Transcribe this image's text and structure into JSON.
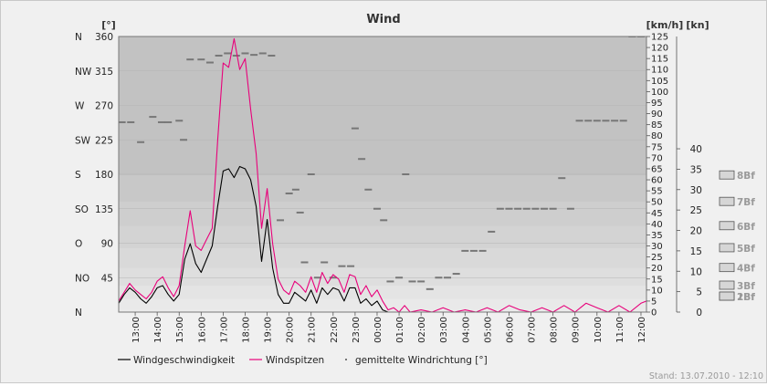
{
  "chart_data": {
    "type": "line",
    "title": "Wind",
    "left_axis": {
      "unit_label": "[°]",
      "ylim": [
        0,
        360
      ],
      "ticks": [
        {
          "value": 360,
          "label": "N"
        },
        {
          "value": 315,
          "label": "NW"
        },
        {
          "value": 270,
          "label": "W"
        },
        {
          "value": 225,
          "label": "SW"
        },
        {
          "value": 180,
          "label": "S"
        },
        {
          "value": 135,
          "label": "SO"
        },
        {
          "value": 90,
          "label": "O"
        },
        {
          "value": 45,
          "label": "NO"
        },
        {
          "value": 0,
          "label": "N"
        }
      ],
      "values": [
        "360",
        "315",
        "270",
        "225",
        "180",
        "135",
        "90",
        "45"
      ]
    },
    "kmh_axis": {
      "unit_label": "[km/h]",
      "ylim": [
        0,
        125
      ],
      "ticks": [
        "0",
        "5",
        "10",
        "15",
        "20",
        "25",
        "30",
        "35",
        "40",
        "45",
        "50",
        "55",
        "60",
        "65",
        "70",
        "75",
        "80",
        "85",
        "90",
        "95",
        "100",
        "105",
        "110",
        "115",
        "120",
        "125"
      ]
    },
    "kn_axis": {
      "unit_label": "[kn]",
      "ylim": [
        0,
        67.5
      ],
      "ticks": [
        "0",
        "5",
        "10",
        "15",
        "20",
        "25",
        "30",
        "35",
        "40"
      ]
    },
    "beaufort_scale": [
      {
        "label": "1Bf",
        "kmh": 1
      },
      {
        "label": "2Bf",
        "kmh": 6
      },
      {
        "label": "3Bf",
        "kmh": 12
      },
      {
        "label": "4Bf",
        "kmh": 20
      },
      {
        "label": "5Bf",
        "kmh": 29
      },
      {
        "label": "6Bf",
        "kmh": 39
      },
      {
        "label": "7Bf",
        "kmh": 50
      },
      {
        "label": "8Bf",
        "kmh": 62
      }
    ],
    "x_range_hours": [
      12.25,
      36.25
    ],
    "x_tick_labels": [
      "13:00",
      "14:00",
      "15:00",
      "16:00",
      "17:00",
      "18:00",
      "19:00",
      "20:00",
      "21:00",
      "22:00",
      "23:00",
      "00:00",
      "01:00",
      "02:00",
      "03:00",
      "04:00",
      "05:00",
      "06:00",
      "07:00",
      "08:00",
      "09:00",
      "10:00",
      "11:00",
      "12:00"
    ],
    "series": [
      {
        "name": "Windgeschwindigkeit",
        "color": "#000000",
        "x_hours": [
          12.25,
          12.5,
          12.75,
          13.0,
          13.25,
          13.5,
          13.75,
          14.0,
          14.25,
          14.5,
          14.75,
          15.0,
          15.25,
          15.5,
          15.75,
          16.0,
          16.25,
          16.5,
          16.75,
          17.0,
          17.25,
          17.5,
          17.75,
          18.0,
          18.25,
          18.5,
          18.75,
          19.0,
          19.25,
          19.5,
          19.75,
          20.0,
          20.25,
          20.5,
          20.75,
          21.0,
          21.25,
          21.5,
          21.75,
          22.0,
          22.25,
          22.5,
          22.75,
          23.0,
          23.25,
          23.5,
          23.75,
          24.0,
          24.25,
          24.5,
          24.75,
          25.0,
          25.25,
          25.5,
          26.0,
          26.5,
          27.0,
          27.5,
          28.0,
          28.5,
          29.0,
          29.5,
          30.0,
          30.5,
          31.0,
          31.5,
          32.0,
          32.5,
          33.0,
          33.5,
          34.0,
          34.5,
          35.0,
          35.5,
          36.0,
          36.25
        ],
        "values": [
          4,
          8,
          11,
          9,
          6,
          4,
          7,
          11,
          12,
          8,
          5,
          8,
          24,
          31,
          22,
          18,
          24,
          30,
          48,
          64,
          65,
          61,
          66,
          65,
          60,
          48,
          23,
          42,
          20,
          8,
          4,
          4,
          9,
          7,
          5,
          10,
          4,
          11,
          8,
          11,
          10,
          5,
          11,
          11,
          4,
          6,
          3,
          5,
          1,
          0,
          0,
          0,
          0,
          0,
          0,
          0,
          0,
          0,
          0,
          0,
          0,
          0,
          0,
          0,
          0,
          0,
          0,
          0,
          0,
          0,
          0,
          0,
          0,
          0,
          0,
          0
        ]
      },
      {
        "name": "Windspitzen",
        "color": "#e8007a",
        "x_hours": [
          12.25,
          12.5,
          12.75,
          13.0,
          13.25,
          13.5,
          13.75,
          14.0,
          14.25,
          14.5,
          14.75,
          15.0,
          15.25,
          15.5,
          15.75,
          16.0,
          16.25,
          16.5,
          16.75,
          17.0,
          17.25,
          17.5,
          17.75,
          18.0,
          18.25,
          18.5,
          18.75,
          19.0,
          19.25,
          19.5,
          19.75,
          20.0,
          20.25,
          20.5,
          20.75,
          21.0,
          21.25,
          21.5,
          21.75,
          22.0,
          22.25,
          22.5,
          22.75,
          23.0,
          23.25,
          23.5,
          23.75,
          24.0,
          24.25,
          24.5,
          24.75,
          25.0,
          25.25,
          25.5,
          26.0,
          26.5,
          27.0,
          27.5,
          28.0,
          28.5,
          29.0,
          29.5,
          30.0,
          30.5,
          31.0,
          31.5,
          32.0,
          32.5,
          33.0,
          33.5,
          34.0,
          34.5,
          35.0,
          35.5,
          36.0,
          36.25
        ],
        "values": [
          5,
          9,
          13,
          10,
          8,
          6,
          9,
          14,
          16,
          11,
          7,
          12,
          30,
          46,
          30,
          28,
          33,
          38,
          78,
          113,
          111,
          124,
          110,
          115,
          92,
          72,
          38,
          56,
          31,
          15,
          10,
          8,
          14,
          12,
          9,
          16,
          9,
          18,
          13,
          17,
          15,
          9,
          17,
          16,
          8,
          12,
          7,
          10,
          5,
          1,
          2,
          0,
          3,
          0,
          1,
          0,
          2,
          0,
          1,
          0,
          2,
          0,
          3,
          1,
          0,
          2,
          0,
          3,
          0,
          4,
          2,
          0,
          3,
          0,
          4,
          5
        ]
      },
      {
        "name": "gemittelte Windrichtung [°]",
        "color": "#777777",
        "x_hours": [
          12.4,
          12.8,
          13.25,
          13.8,
          14.2,
          14.5,
          15.0,
          15.2,
          15.5,
          16.0,
          16.4,
          16.8,
          17.2,
          17.6,
          18.0,
          18.4,
          18.8,
          19.2,
          19.6,
          20.0,
          20.3,
          20.5,
          20.7,
          21.0,
          21.3,
          21.6,
          22.0,
          22.4,
          22.8,
          23.0,
          23.3,
          23.6,
          24.0,
          24.3,
          24.6,
          25.0,
          25.3,
          25.6,
          26.0,
          26.4,
          26.8,
          27.2,
          27.6,
          28.0,
          28.4,
          28.8,
          29.2,
          29.6,
          30.0,
          30.4,
          30.8,
          31.2,
          31.6,
          32.0,
          32.4,
          32.8,
          33.2,
          33.6,
          34.0,
          34.4,
          34.8,
          35.2,
          35.6,
          36.0
        ],
        "values": [
          248,
          248,
          222,
          255,
          248,
          248,
          250,
          225,
          330,
          330,
          326,
          335,
          338,
          335,
          338,
          336,
          338,
          335,
          120,
          155,
          160,
          130,
          65,
          180,
          45,
          65,
          45,
          60,
          60,
          240,
          200,
          160,
          135,
          120,
          40,
          45,
          180,
          40,
          40,
          30,
          45,
          45,
          50,
          80,
          80,
          80,
          105,
          135,
          135,
          135,
          135,
          135,
          135,
          135,
          175,
          135,
          250,
          250,
          250,
          250,
          250,
          250,
          360,
          360
        ]
      }
    ],
    "legend_position": "bottom",
    "grid": true,
    "footer": "Stand: 13.07.2010 - 12:10"
  }
}
